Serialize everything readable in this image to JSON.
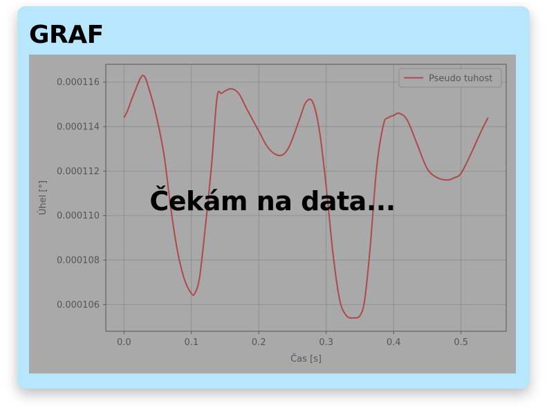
{
  "card": {
    "title": "GRAF"
  },
  "overlay": {
    "text": "Čekám na data..."
  },
  "colors": {
    "card_bg": "#b8e6fc",
    "plot_bg": "#a9a9a9",
    "series": "#b04848",
    "text": "#555555"
  },
  "chart_data": {
    "type": "line",
    "title": "",
    "xlabel": "Čas [s]",
    "ylabel": "Úhel [°]",
    "xlim": [
      -0.027,
      0.567
    ],
    "ylim": [
      0.0001048,
      0.0001168
    ],
    "xticks": [
      0.0,
      0.1,
      0.2,
      0.3,
      0.4,
      0.5
    ],
    "xtick_labels": [
      "0.0",
      "0.1",
      "0.2",
      "0.3",
      "0.4",
      "0.5"
    ],
    "yticks": [
      0.000106,
      0.000108,
      0.00011,
      0.000112,
      0.000114,
      0.000116
    ],
    "ytick_labels": [
      "0.000106",
      "0.000108",
      "0.000110",
      "0.000112",
      "0.000114",
      "0.000116"
    ],
    "grid": true,
    "legend": "top-right",
    "series": [
      {
        "name": "Pseudo tuhost",
        "x": [
          0.0,
          0.005,
          0.015,
          0.028,
          0.038,
          0.05,
          0.06,
          0.07,
          0.08,
          0.09,
          0.1,
          0.105,
          0.112,
          0.12,
          0.13,
          0.138,
          0.145,
          0.158,
          0.17,
          0.182,
          0.2,
          0.215,
          0.232,
          0.245,
          0.26,
          0.27,
          0.28,
          0.29,
          0.3,
          0.31,
          0.32,
          0.33,
          0.34,
          0.35,
          0.357,
          0.365,
          0.375,
          0.385,
          0.392,
          0.4,
          0.408,
          0.42,
          0.435,
          0.45,
          0.465,
          0.48,
          0.49,
          0.5,
          0.515,
          0.53,
          0.54
        ],
        "values": [
          0.0001144,
          0.0001147,
          0.0001155,
          0.0001163,
          0.0001156,
          0.0001142,
          0.0001126,
          0.0001102,
          0.0001083,
          0.0001071,
          0.0001065,
          0.0001065,
          0.0001072,
          0.0001093,
          0.0001123,
          0.0001153,
          0.0001155,
          0.0001157,
          0.0001155,
          0.0001148,
          0.0001138,
          0.000113,
          0.0001127,
          0.0001131,
          0.0001143,
          0.0001151,
          0.0001151,
          0.0001138,
          0.0001113,
          0.0001083,
          0.0001062,
          0.0001055,
          0.0001054,
          0.0001055,
          0.0001062,
          0.0001085,
          0.0001122,
          0.0001141,
          0.0001144,
          0.0001145,
          0.0001146,
          0.0001143,
          0.0001132,
          0.0001121,
          0.0001117,
          0.0001116,
          0.0001117,
          0.0001119,
          0.0001128,
          0.0001138,
          0.0001144
        ]
      }
    ]
  }
}
